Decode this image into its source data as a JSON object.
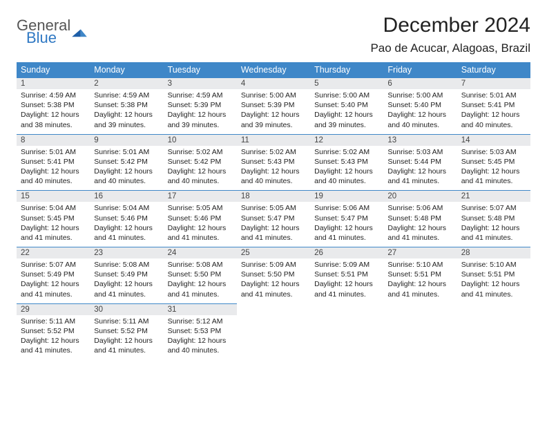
{
  "logo": {
    "text1": "General",
    "text2": "Blue"
  },
  "title": "December 2024",
  "location": "Pao de Acucar, Alagoas, Brazil",
  "colors": {
    "header_bg": "#3f87c8",
    "header_text": "#ffffff",
    "daynum_bg": "#e9eaec",
    "border": "#3f87c8",
    "logo_gray": "#555555",
    "logo_blue": "#2f78c3"
  },
  "day_headers": [
    "Sunday",
    "Monday",
    "Tuesday",
    "Wednesday",
    "Thursday",
    "Friday",
    "Saturday"
  ],
  "weeks": [
    [
      {
        "n": "1",
        "sunrise": "Sunrise: 4:59 AM",
        "sunset": "Sunset: 5:38 PM",
        "daylight": "Daylight: 12 hours and 38 minutes."
      },
      {
        "n": "2",
        "sunrise": "Sunrise: 4:59 AM",
        "sunset": "Sunset: 5:38 PM",
        "daylight": "Daylight: 12 hours and 39 minutes."
      },
      {
        "n": "3",
        "sunrise": "Sunrise: 4:59 AM",
        "sunset": "Sunset: 5:39 PM",
        "daylight": "Daylight: 12 hours and 39 minutes."
      },
      {
        "n": "4",
        "sunrise": "Sunrise: 5:00 AM",
        "sunset": "Sunset: 5:39 PM",
        "daylight": "Daylight: 12 hours and 39 minutes."
      },
      {
        "n": "5",
        "sunrise": "Sunrise: 5:00 AM",
        "sunset": "Sunset: 5:40 PM",
        "daylight": "Daylight: 12 hours and 39 minutes."
      },
      {
        "n": "6",
        "sunrise": "Sunrise: 5:00 AM",
        "sunset": "Sunset: 5:40 PM",
        "daylight": "Daylight: 12 hours and 40 minutes."
      },
      {
        "n": "7",
        "sunrise": "Sunrise: 5:01 AM",
        "sunset": "Sunset: 5:41 PM",
        "daylight": "Daylight: 12 hours and 40 minutes."
      }
    ],
    [
      {
        "n": "8",
        "sunrise": "Sunrise: 5:01 AM",
        "sunset": "Sunset: 5:41 PM",
        "daylight": "Daylight: 12 hours and 40 minutes."
      },
      {
        "n": "9",
        "sunrise": "Sunrise: 5:01 AM",
        "sunset": "Sunset: 5:42 PM",
        "daylight": "Daylight: 12 hours and 40 minutes."
      },
      {
        "n": "10",
        "sunrise": "Sunrise: 5:02 AM",
        "sunset": "Sunset: 5:42 PM",
        "daylight": "Daylight: 12 hours and 40 minutes."
      },
      {
        "n": "11",
        "sunrise": "Sunrise: 5:02 AM",
        "sunset": "Sunset: 5:43 PM",
        "daylight": "Daylight: 12 hours and 40 minutes."
      },
      {
        "n": "12",
        "sunrise": "Sunrise: 5:02 AM",
        "sunset": "Sunset: 5:43 PM",
        "daylight": "Daylight: 12 hours and 40 minutes."
      },
      {
        "n": "13",
        "sunrise": "Sunrise: 5:03 AM",
        "sunset": "Sunset: 5:44 PM",
        "daylight": "Daylight: 12 hours and 41 minutes."
      },
      {
        "n": "14",
        "sunrise": "Sunrise: 5:03 AM",
        "sunset": "Sunset: 5:45 PM",
        "daylight": "Daylight: 12 hours and 41 minutes."
      }
    ],
    [
      {
        "n": "15",
        "sunrise": "Sunrise: 5:04 AM",
        "sunset": "Sunset: 5:45 PM",
        "daylight": "Daylight: 12 hours and 41 minutes."
      },
      {
        "n": "16",
        "sunrise": "Sunrise: 5:04 AM",
        "sunset": "Sunset: 5:46 PM",
        "daylight": "Daylight: 12 hours and 41 minutes."
      },
      {
        "n": "17",
        "sunrise": "Sunrise: 5:05 AM",
        "sunset": "Sunset: 5:46 PM",
        "daylight": "Daylight: 12 hours and 41 minutes."
      },
      {
        "n": "18",
        "sunrise": "Sunrise: 5:05 AM",
        "sunset": "Sunset: 5:47 PM",
        "daylight": "Daylight: 12 hours and 41 minutes."
      },
      {
        "n": "19",
        "sunrise": "Sunrise: 5:06 AM",
        "sunset": "Sunset: 5:47 PM",
        "daylight": "Daylight: 12 hours and 41 minutes."
      },
      {
        "n": "20",
        "sunrise": "Sunrise: 5:06 AM",
        "sunset": "Sunset: 5:48 PM",
        "daylight": "Daylight: 12 hours and 41 minutes."
      },
      {
        "n": "21",
        "sunrise": "Sunrise: 5:07 AM",
        "sunset": "Sunset: 5:48 PM",
        "daylight": "Daylight: 12 hours and 41 minutes."
      }
    ],
    [
      {
        "n": "22",
        "sunrise": "Sunrise: 5:07 AM",
        "sunset": "Sunset: 5:49 PM",
        "daylight": "Daylight: 12 hours and 41 minutes."
      },
      {
        "n": "23",
        "sunrise": "Sunrise: 5:08 AM",
        "sunset": "Sunset: 5:49 PM",
        "daylight": "Daylight: 12 hours and 41 minutes."
      },
      {
        "n": "24",
        "sunrise": "Sunrise: 5:08 AM",
        "sunset": "Sunset: 5:50 PM",
        "daylight": "Daylight: 12 hours and 41 minutes."
      },
      {
        "n": "25",
        "sunrise": "Sunrise: 5:09 AM",
        "sunset": "Sunset: 5:50 PM",
        "daylight": "Daylight: 12 hours and 41 minutes."
      },
      {
        "n": "26",
        "sunrise": "Sunrise: 5:09 AM",
        "sunset": "Sunset: 5:51 PM",
        "daylight": "Daylight: 12 hours and 41 minutes."
      },
      {
        "n": "27",
        "sunrise": "Sunrise: 5:10 AM",
        "sunset": "Sunset: 5:51 PM",
        "daylight": "Daylight: 12 hours and 41 minutes."
      },
      {
        "n": "28",
        "sunrise": "Sunrise: 5:10 AM",
        "sunset": "Sunset: 5:51 PM",
        "daylight": "Daylight: 12 hours and 41 minutes."
      }
    ],
    [
      {
        "n": "29",
        "sunrise": "Sunrise: 5:11 AM",
        "sunset": "Sunset: 5:52 PM",
        "daylight": "Daylight: 12 hours and 41 minutes."
      },
      {
        "n": "30",
        "sunrise": "Sunrise: 5:11 AM",
        "sunset": "Sunset: 5:52 PM",
        "daylight": "Daylight: 12 hours and 41 minutes."
      },
      {
        "n": "31",
        "sunrise": "Sunrise: 5:12 AM",
        "sunset": "Sunset: 5:53 PM",
        "daylight": "Daylight: 12 hours and 40 minutes."
      },
      null,
      null,
      null,
      null
    ]
  ]
}
